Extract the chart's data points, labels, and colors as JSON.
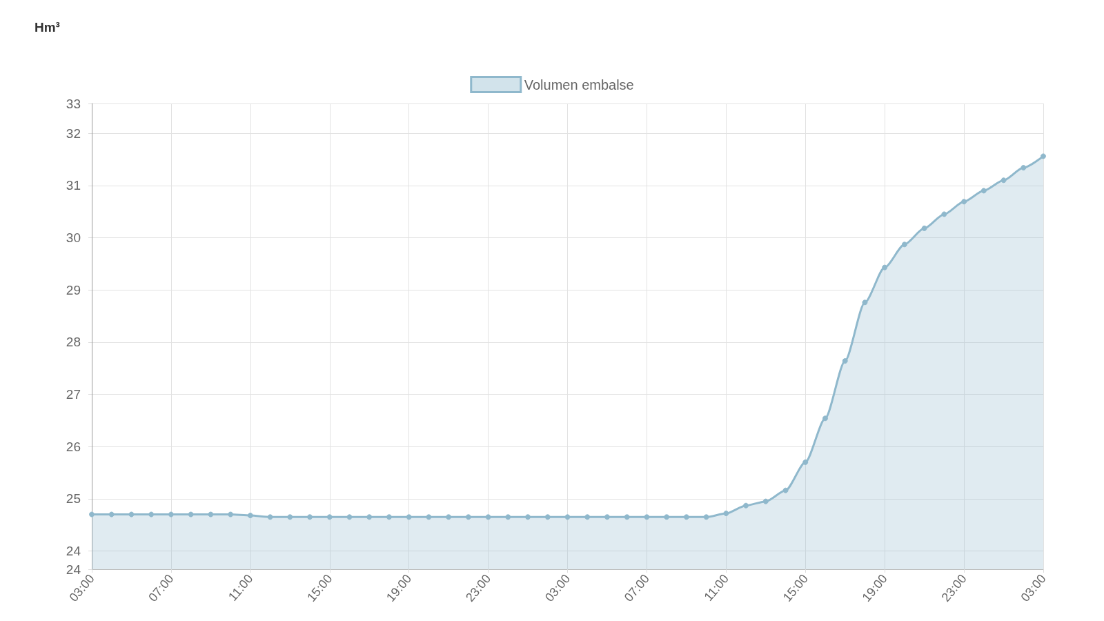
{
  "chart_data": {
    "type": "area",
    "ylabel": "Hm³",
    "legend": "top",
    "grid": true,
    "marker": "circle",
    "line_style": "solid",
    "categories": [
      "03:00",
      null,
      null,
      null,
      "07:00",
      null,
      null,
      null,
      "11:00",
      null,
      null,
      null,
      "15:00",
      null,
      null,
      null,
      "19:00",
      null,
      null,
      null,
      "23:00",
      null,
      null,
      null,
      "03:00",
      null,
      null,
      null,
      "07:00",
      null,
      null,
      null,
      "11:00",
      null,
      null,
      null,
      "15:00",
      null,
      null,
      null,
      "19:00",
      null,
      null,
      null,
      "23:00",
      null,
      null,
      null,
      "03:00"
    ],
    "series": [
      {
        "name": "Volumen embalse",
        "color": "#8fb8cc",
        "values": [
          24.7,
          24.7,
          24.7,
          24.7,
          24.7,
          24.7,
          24.7,
          24.7,
          24.68,
          24.65,
          24.65,
          24.65,
          24.65,
          24.65,
          24.65,
          24.65,
          24.65,
          24.65,
          24.65,
          24.65,
          24.65,
          24.65,
          24.65,
          24.65,
          24.65,
          24.65,
          24.65,
          24.65,
          24.65,
          24.65,
          24.65,
          24.65,
          24.72,
          24.87,
          24.95,
          25.16,
          25.7,
          26.54,
          27.64,
          28.76,
          29.43,
          29.87,
          30.18,
          30.45,
          30.69,
          30.9,
          31.1,
          31.34,
          31.56
        ]
      }
    ],
    "ylim": [
      23.65,
      32.57
    ],
    "yticks": [
      {
        "value": 23.65,
        "label": "24"
      },
      24,
      25,
      26,
      27,
      28,
      29,
      30,
      31,
      32,
      {
        "value": 32.57,
        "label": "33"
      }
    ]
  }
}
